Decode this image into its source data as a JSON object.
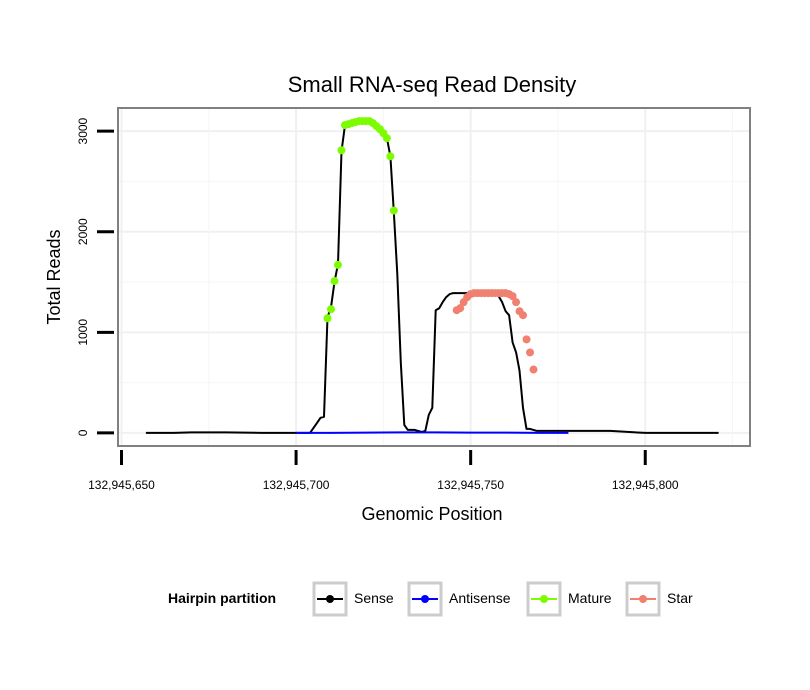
{
  "chart_data": {
    "type": "line",
    "title": "Small RNA-seq Read Density",
    "xlabel": "Genomic Position",
    "ylabel": "Total Reads",
    "xlim": [
      132945649,
      132945830
    ],
    "ylim": [
      -130,
      3230
    ],
    "x_ticks": [
      132945650,
      132945700,
      132945750,
      132945800
    ],
    "x_tick_labels": [
      "132,945,650",
      "132,945,700",
      "132,945,750",
      "132,945,800"
    ],
    "y_ticks": [
      0,
      1000,
      2000,
      3000
    ],
    "y_tick_labels": [
      "0",
      "1000",
      "2000",
      "3000"
    ],
    "grid": true,
    "legend": {
      "title": "Hairpin partition",
      "position": "bottom",
      "entries": [
        {
          "name": "Sense",
          "color": "#000000"
        },
        {
          "name": "Antisense",
          "color": "#0000ff"
        },
        {
          "name": "Mature",
          "color": "#7cfc00"
        },
        {
          "name": "Star",
          "color": "#f08070"
        }
      ]
    },
    "series": [
      {
        "name": "Sense",
        "color": "#000000",
        "style": "line",
        "x": [
          132945657,
          132945665,
          132945670,
          132945680,
          132945690,
          132945700,
          132945704,
          132945705,
          132945706,
          132945707,
          132945708,
          132945709,
          132945710,
          132945711,
          132945712,
          132945713,
          132945714,
          132945715,
          132945716,
          132945717,
          132945718,
          132945719,
          132945720,
          132945721,
          132945722,
          132945723,
          132945724,
          132945725,
          132945726,
          132945727,
          132945728,
          132945729,
          132945730,
          132945731,
          132945732,
          132945733,
          132945734,
          132945735,
          132945736,
          132945737,
          132945738,
          132945739,
          132945740,
          132945741,
          132945742,
          132945743,
          132945744,
          132945745,
          132945746,
          132945747,
          132945748,
          132945749,
          132945750,
          132945751,
          132945752,
          132945753,
          132945754,
          132945755,
          132945756,
          132945757,
          132945758,
          132945759,
          132945760,
          132945761,
          132945762,
          132945763,
          132945764,
          132945765,
          132945766,
          132945767,
          132945768,
          132945769,
          132945770,
          132945771,
          132945772,
          132945775,
          132945780,
          132945785,
          132945790,
          132945800,
          132945810,
          132945821
        ],
        "y": [
          0,
          0,
          5,
          5,
          0,
          0,
          0,
          50,
          100,
          150,
          160,
          1150,
          1250,
          1500,
          1680,
          2800,
          3060,
          3070,
          3080,
          3090,
          3100,
          3100,
          3100,
          3100,
          3080,
          3050,
          3020,
          3000,
          2930,
          2750,
          2200,
          1580,
          700,
          80,
          30,
          30,
          30,
          20,
          10,
          20,
          180,
          250,
          1220,
          1240,
          1300,
          1350,
          1380,
          1390,
          1390,
          1390,
          1390,
          1390,
          1390,
          1390,
          1390,
          1390,
          1390,
          1390,
          1390,
          1380,
          1360,
          1300,
          1210,
          1170,
          900,
          800,
          620,
          250,
          40,
          40,
          30,
          20,
          20,
          20,
          20,
          20,
          20,
          20,
          20,
          0,
          0,
          0
        ]
      },
      {
        "name": "Antisense",
        "color": "#0000ff",
        "style": "line",
        "x": [
          132945700,
          132945710,
          132945720,
          132945730,
          132945740,
          132945750,
          132945760,
          132945770,
          132945778
        ],
        "y": [
          0,
          0,
          3,
          5,
          5,
          3,
          3,
          0,
          0
        ]
      },
      {
        "name": "Mature",
        "color": "#7cfc00",
        "style": "points",
        "x": [
          132945709,
          132945710,
          132945711,
          132945712,
          132945713,
          132945714,
          132945715,
          132945716,
          132945717,
          132945718,
          132945719,
          132945720,
          132945721,
          132945722,
          132945723,
          132945724,
          132945725,
          132945726,
          132945727,
          132945728
        ],
        "y": [
          1140,
          1230,
          1510,
          1670,
          2810,
          3060,
          3070,
          3080,
          3090,
          3100,
          3100,
          3100,
          3100,
          3080,
          3050,
          3020,
          2980,
          2930,
          2750,
          2210
        ]
      },
      {
        "name": "Star",
        "color": "#f08070",
        "style": "points",
        "x": [
          132945746,
          132945747,
          132945748,
          132945749,
          132945750,
          132945751,
          132945752,
          132945753,
          132945754,
          132945755,
          132945756,
          132945757,
          132945758,
          132945759,
          132945760,
          132945761,
          132945762,
          132945763,
          132945764,
          132945765,
          132945766,
          132945767,
          132945768
        ],
        "y": [
          1220,
          1240,
          1300,
          1350,
          1380,
          1390,
          1390,
          1390,
          1390,
          1390,
          1390,
          1390,
          1390,
          1390,
          1390,
          1380,
          1360,
          1300,
          1210,
          1170,
          930,
          800,
          630
        ]
      }
    ]
  }
}
